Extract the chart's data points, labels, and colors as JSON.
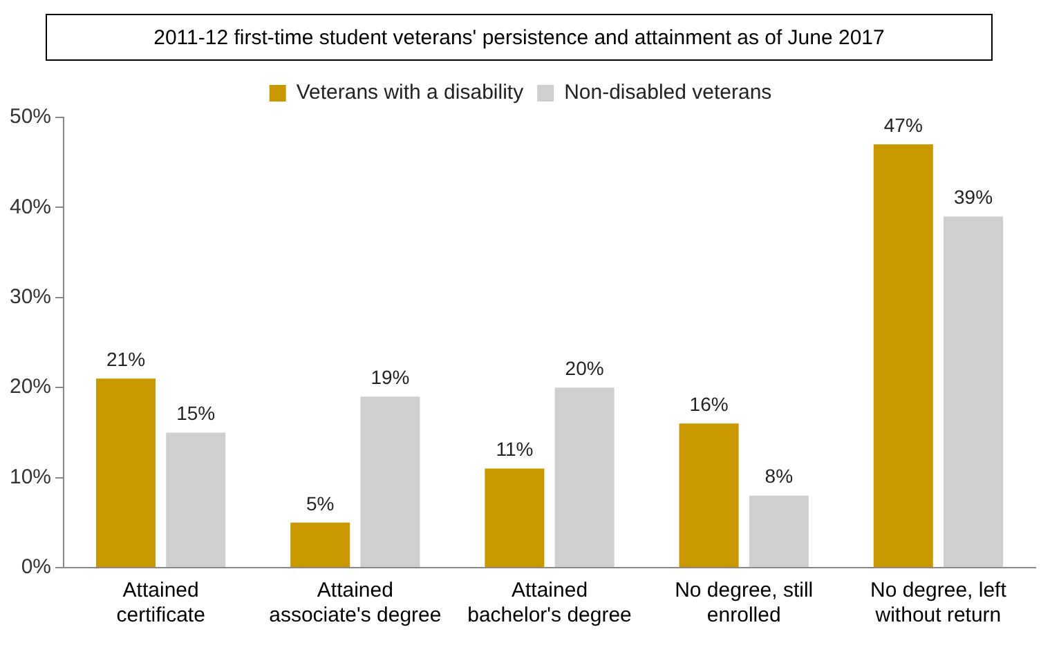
{
  "chart_data": {
    "type": "bar",
    "title": "2011-12 first-time student veterans' persistence and attainment as of June 2017",
    "categories": [
      "Attained\ncertificate",
      "Attained\nassociate's degree",
      "Attained\nbachelor's degree",
      "No degree, still\nenrolled",
      "No degree, left\nwithout return"
    ],
    "series": [
      {
        "name": "Veterans with a disability",
        "color": "#c99700",
        "values": [
          21,
          5,
          11,
          16,
          47
        ],
        "value_labels": [
          "21%",
          "5%",
          "11%",
          "16%",
          "47%"
        ]
      },
      {
        "name": "Non-disabled veterans",
        "color": "#d0cfcf",
        "values": [
          15,
          19,
          20,
          8,
          39
        ],
        "value_labels": [
          "15%",
          "19%",
          "20%",
          "8%",
          "39%"
        ]
      }
    ],
    "ylim": [
      0,
      50
    ],
    "yticks": [
      {
        "value": 0,
        "label": "0%"
      },
      {
        "value": 10,
        "label": "10%"
      },
      {
        "value": 20,
        "label": "20%"
      },
      {
        "value": 30,
        "label": "30%"
      },
      {
        "value": 40,
        "label": "40%"
      },
      {
        "value": 50,
        "label": "50%"
      }
    ],
    "grid": false,
    "legend": "top"
  }
}
